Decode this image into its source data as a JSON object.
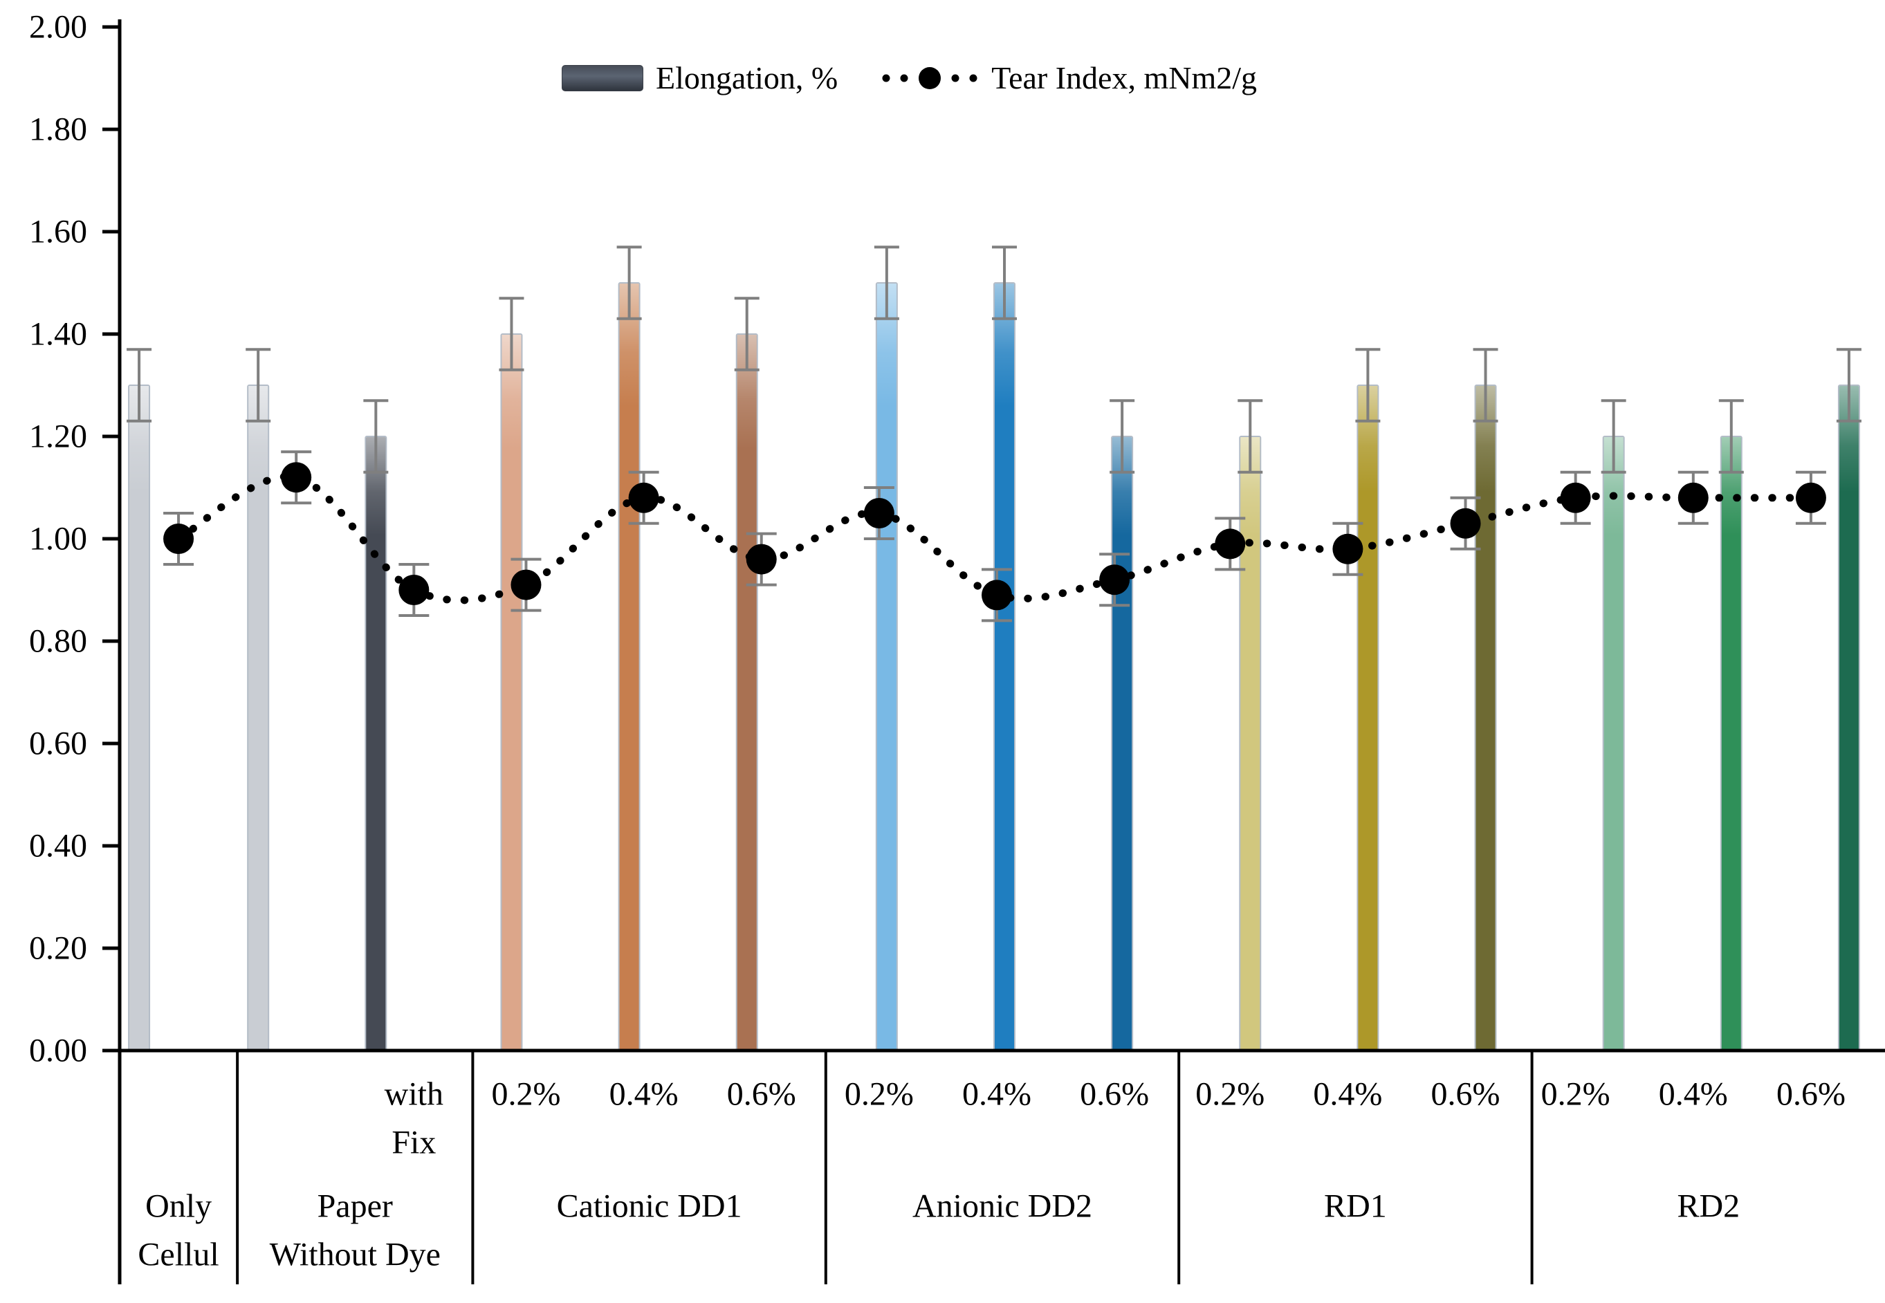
{
  "legend": {
    "bar_series_label": "Elongation, %",
    "line_series_label": "Tear Index, mNm2/g"
  },
  "y_axis": {
    "min": 0,
    "max": 2,
    "step": 0.2,
    "decimals": 2
  },
  "chart_data": {
    "type": "bar",
    "title": "",
    "xlabel": "",
    "ylabel": "",
    "ylim": [
      0,
      2
    ],
    "grid": false,
    "legend_position": "top-center",
    "series_meta": [
      {
        "name": "Elongation, %",
        "type": "bar",
        "error_bar": 0.07
      },
      {
        "name": "Tear Index, mNm2/g",
        "type": "line-dotted",
        "error_bar": 0.05,
        "color": "#000000",
        "marker": "filled-circle"
      }
    ],
    "groups": [
      {
        "label_lines": [
          "Only",
          "Cellul"
        ],
        "items": [
          {
            "sub_lines": [],
            "elongation": 1.3,
            "tear_index": 1.0,
            "bar_color": "#c9cdd3"
          }
        ]
      },
      {
        "label_lines": [
          "Paper",
          "Without Dye"
        ],
        "items": [
          {
            "sub_lines": [],
            "elongation": 1.3,
            "tear_index": 1.12,
            "bar_color": "#c9cdd3"
          },
          {
            "sub_lines": [
              "with",
              "Fix"
            ],
            "elongation": 1.2,
            "tear_index": 0.9,
            "bar_color": "#454a54"
          }
        ]
      },
      {
        "label_lines": [
          "Cationic DD1"
        ],
        "items": [
          {
            "sub_lines": [
              "0.2%"
            ],
            "elongation": 1.4,
            "tear_index": 0.91,
            "bar_color": "#dca68a"
          },
          {
            "sub_lines": [
              "0.4%"
            ],
            "elongation": 1.5,
            "tear_index": 1.08,
            "bar_color": "#c67e4e"
          },
          {
            "sub_lines": [
              "0.6%"
            ],
            "elongation": 1.4,
            "tear_index": 0.96,
            "bar_color": "#a97152"
          }
        ]
      },
      {
        "label_lines": [
          "Anionic DD2"
        ],
        "items": [
          {
            "sub_lines": [
              "0.2%"
            ],
            "elongation": 1.5,
            "tear_index": 1.05,
            "bar_color": "#79b9e5"
          },
          {
            "sub_lines": [
              "0.4%"
            ],
            "elongation": 1.5,
            "tear_index": 0.89,
            "bar_color": "#1f7ec0"
          },
          {
            "sub_lines": [
              "0.6%"
            ],
            "elongation": 1.2,
            "tear_index": 0.92,
            "bar_color": "#15689f"
          }
        ]
      },
      {
        "label_lines": [
          "RD1"
        ],
        "items": [
          {
            "sub_lines": [
              "0.2%"
            ],
            "elongation": 1.2,
            "tear_index": 0.99,
            "bar_color": "#d1c77e"
          },
          {
            "sub_lines": [
              "0.4%"
            ],
            "elongation": 1.3,
            "tear_index": 0.98,
            "bar_color": "#ad9829"
          },
          {
            "sub_lines": [
              "0.6%"
            ],
            "elongation": 1.3,
            "tear_index": 1.03,
            "bar_color": "#6e6a33"
          }
        ]
      },
      {
        "label_lines": [
          "RD2"
        ],
        "items": [
          {
            "sub_lines": [
              "0.2%"
            ],
            "elongation": 1.2,
            "tear_index": 1.08,
            "bar_color": "#7db999"
          },
          {
            "sub_lines": [
              "0.4%"
            ],
            "elongation": 1.2,
            "tear_index": 1.08,
            "bar_color": "#2f9059"
          },
          {
            "sub_lines": [
              "0.6%"
            ],
            "elongation": 1.3,
            "tear_index": 1.08,
            "bar_color": "#1d6b50"
          }
        ]
      }
    ]
  }
}
